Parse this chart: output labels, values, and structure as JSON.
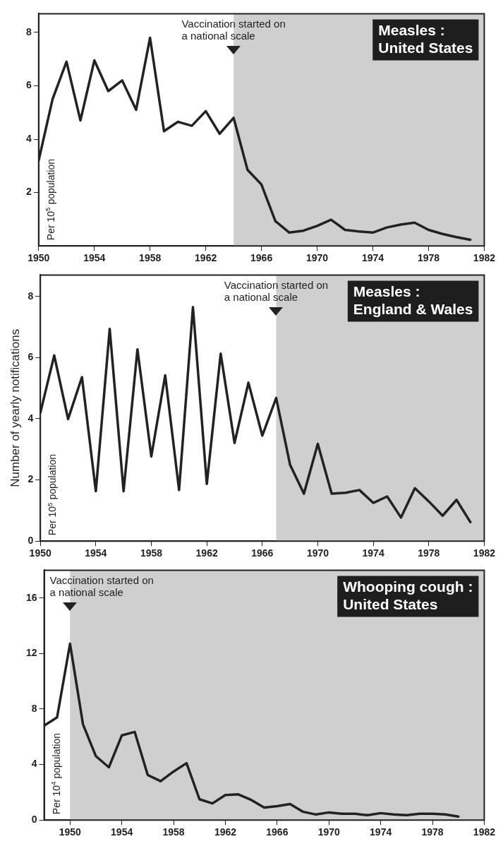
{
  "chart_data": [
    {
      "type": "line",
      "title": "Measles : United States",
      "annotations": [
        "Per 10$^{5}$ population"
      ],
      "marker": "none",
      "legend": false,
      "x": [
        1950,
        1951,
        1952,
        1953,
        1954,
        1955,
        1956,
        1957,
        1958,
        1959,
        1960,
        1961,
        1962,
        1963,
        1964,
        1965,
        1966,
        1967,
        1968,
        1969,
        1970,
        1971,
        1972,
        1973,
        1974,
        1975,
        1976,
        1977,
        1978,
        1979,
        1980,
        1981
      ],
      "series": [
        {
          "color": "#222222",
          "values": [
            3.2,
            5.5,
            6.9,
            4.7,
            6.95,
            5.8,
            6.2,
            5.1,
            7.8,
            4.3,
            4.65,
            4.5,
            5.05,
            4.2,
            4.8,
            2.85,
            2.3,
            0.93,
            0.5,
            0.57,
            0.75,
            0.98,
            0.6,
            0.54,
            0.5,
            0.69,
            0.8,
            0.87,
            0.6,
            0.45,
            0.33,
            0.23
          ]
        }
      ],
      "bands": [
        {
          "axis": "x",
          "from": 1964,
          "to": 1982,
          "label": "Vaccination started on a national scale",
          "color": "#cfcfcf"
        }
      ],
      "xlim": [
        1950,
        1982
      ],
      "xticks": [
        1950,
        1954,
        1958,
        1962,
        1966,
        1970,
        1974,
        1978,
        1982
      ],
      "ylim": [
        0,
        8.7
      ],
      "yticks": [
        2,
        4,
        6,
        8
      ]
    },
    {
      "type": "line",
      "title": "Measles : England & Wales",
      "ylabel": "Number of yearly notifications",
      "annotations": [
        "Per 10$^{5}$ population"
      ],
      "marker": "none",
      "legend": false,
      "x": [
        1950,
        1951,
        1952,
        1953,
        1954,
        1955,
        1956,
        1957,
        1958,
        1959,
        1960,
        1961,
        1962,
        1963,
        1964,
        1965,
        1966,
        1967,
        1968,
        1969,
        1970,
        1971,
        1972,
        1973,
        1974,
        1975,
        1976,
        1977,
        1978,
        1979,
        1980,
        1981
      ],
      "series": [
        {
          "color": "#222222",
          "values": [
            4.2,
            6.07,
            3.99,
            5.36,
            1.63,
            6.94,
            1.63,
            6.27,
            2.77,
            5.42,
            1.67,
            7.65,
            1.87,
            6.13,
            3.21,
            5.18,
            3.45,
            4.68,
            2.5,
            1.55,
            3.18,
            1.55,
            1.58,
            1.67,
            1.25,
            1.46,
            0.77,
            1.73,
            1.3,
            0.83,
            1.35,
            0.62
          ]
        }
      ],
      "bands": [
        {
          "axis": "x",
          "from": 1967,
          "to": 1982,
          "label": "Vaccination started on a national scale",
          "color": "#cfcfcf"
        }
      ],
      "xlim": [
        1950,
        1982
      ],
      "xticks": [
        1950,
        1954,
        1958,
        1962,
        1966,
        1970,
        1974,
        1978,
        1982
      ],
      "ylim": [
        0,
        8.7
      ],
      "yticks": [
        0,
        2,
        4,
        6,
        8
      ]
    },
    {
      "type": "line",
      "title": "Whooping cough : United States",
      "annotations": [
        "Per 10$^{4}$ population"
      ],
      "marker": "none",
      "legend": false,
      "x": [
        1948,
        1949,
        1950,
        1951,
        1952,
        1953,
        1954,
        1955,
        1956,
        1957,
        1958,
        1959,
        1960,
        1961,
        1962,
        1963,
        1964,
        1965,
        1966,
        1967,
        1968,
        1969,
        1970,
        1971,
        1972,
        1973,
        1974,
        1975,
        1976,
        1977,
        1978,
        1979,
        1980
      ],
      "series": [
        {
          "color": "#222222",
          "values": [
            6.8,
            7.4,
            12.7,
            6.9,
            4.6,
            3.8,
            6.1,
            6.35,
            3.25,
            2.8,
            3.5,
            4.1,
            1.5,
            1.2,
            1.8,
            1.85,
            1.45,
            0.9,
            1.0,
            1.15,
            0.6,
            0.4,
            0.55,
            0.45,
            0.45,
            0.35,
            0.5,
            0.4,
            0.35,
            0.45,
            0.45,
            0.4,
            0.25
          ]
        }
      ],
      "bands": [
        {
          "axis": "x",
          "from": 1950,
          "to": 1982,
          "label": "Vaccination started on a national scale",
          "color": "#cfcfcf"
        }
      ],
      "xlim": [
        1948,
        1982
      ],
      "xticks": [
        1950,
        1954,
        1958,
        1962,
        1966,
        1970,
        1974,
        1978,
        1982
      ],
      "ylim": [
        0,
        18
      ],
      "yticks": [
        0,
        4,
        8,
        12,
        16
      ]
    }
  ]
}
